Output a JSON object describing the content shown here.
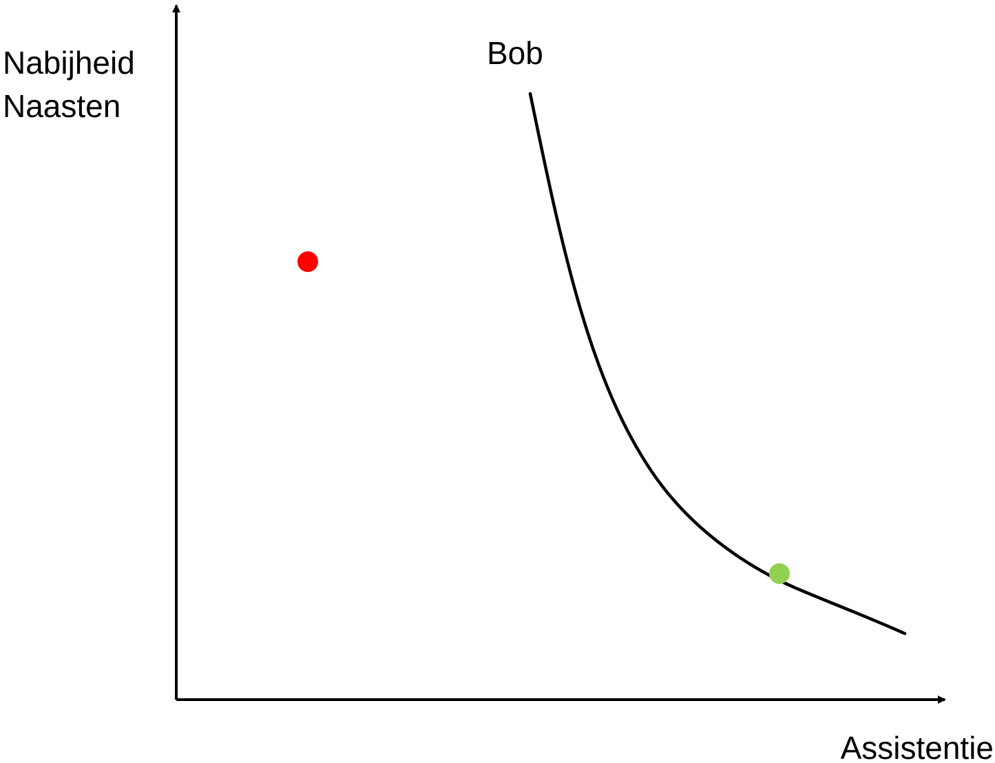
{
  "diagram": {
    "y_axis_label_line1": "Nabijheid",
    "y_axis_label_line2": "Naasten",
    "x_axis_label": "Assistentie",
    "curve_label": "Bob",
    "colors": {
      "axes": "#000000",
      "curve": "#000000",
      "red_point": "#ff0000",
      "green_point": "#92d050",
      "background": "#ffffff"
    }
  }
}
